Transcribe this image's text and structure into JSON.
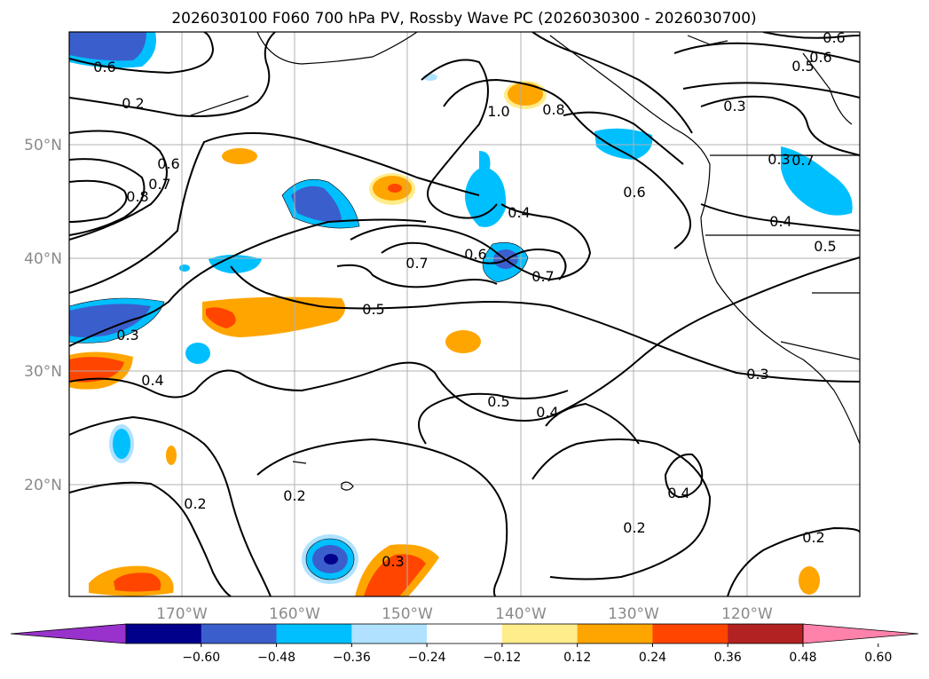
{
  "title": "2026030100 F060 700 hPa PV, Rossby Wave PC (2026030300 - 2026030700)",
  "lat_labels": [
    "50°N",
    "40°N",
    "30°N",
    "20°N"
  ],
  "lon_labels": [
    "170°W",
    "160°W",
    "150°W",
    "140°W",
    "130°W",
    "120°W"
  ],
  "contour_labels": [
    "0.6",
    "0.6",
    "0.8",
    "0.7",
    "1.0",
    "0.8",
    "0.3",
    "0.5",
    "0.6",
    "0.2",
    "0.4",
    "0.3",
    "0.6",
    "0.4",
    "0.7",
    "0.6",
    "0.7",
    "0.5",
    "0.3",
    "0.4",
    "0.5",
    "0.4",
    "0.3",
    "0.2",
    "0.2",
    "0.2",
    "0.4",
    "0.2",
    "0.3",
    "0.5",
    "0.6",
    "0.7"
  ],
  "colorbar": {
    "ticks": [
      "−0.60",
      "−0.48",
      "−0.36",
      "−0.24",
      "−0.12",
      "0.12",
      "0.24",
      "0.36",
      "0.48",
      "0.60"
    ],
    "colors": [
      "#9932cc",
      "#00008b",
      "#3a5fcd",
      "#00bfff",
      "#b0e2ff",
      "#ffffff",
      "#ffec8b",
      "#ffa500",
      "#ff4500",
      "#b22222",
      "#ff82ab"
    ]
  }
}
